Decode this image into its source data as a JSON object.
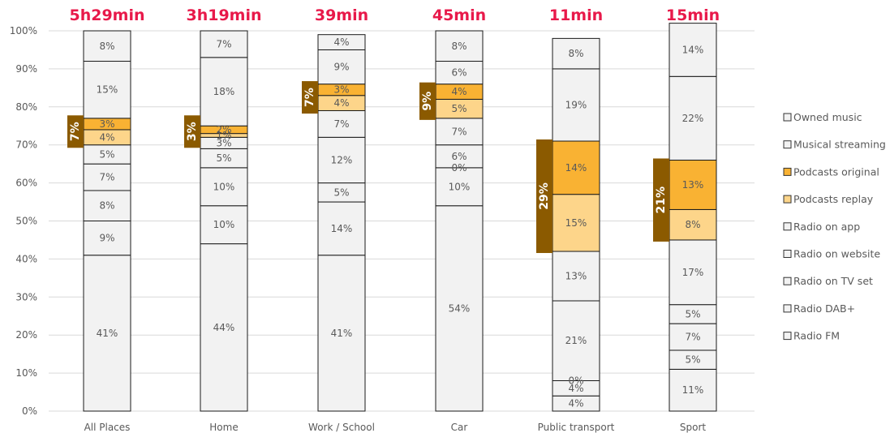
{
  "colors": {
    "segment_default": "#f2f2f2",
    "segment_stroke": "#1a1a1a",
    "podcasts_original": "#f9b233",
    "podcasts_replay": "#fdd58a",
    "bracket": "#8b5a00",
    "duration_text": "#e8194a",
    "gridline": "#d9d9d9"
  },
  "chart_data": {
    "type": "bar",
    "stacked": true,
    "categories": [
      "All Places",
      "Home",
      "Work / School",
      "Car",
      "Public transport",
      "Sport"
    ],
    "durations": [
      "5h29min",
      "3h19min",
      "39min",
      "45min",
      "11min",
      "15min"
    ],
    "ylim": [
      0,
      100
    ],
    "y_ticks": [
      "0%",
      "10%",
      "20%",
      "30%",
      "40%",
      "50%",
      "60%",
      "70%",
      "80%",
      "90%",
      "100%"
    ],
    "grid": true,
    "legend_position": "right",
    "series": [
      {
        "name": "Radio FM",
        "color": "#f2f2f2",
        "values": [
          41,
          44,
          41,
          54,
          4,
          11
        ],
        "labels": [
          "41%",
          "44%",
          "41%",
          "54%",
          "4%",
          "11%"
        ]
      },
      {
        "name": "Radio DAB+",
        "color": "#f2f2f2",
        "values": [
          9,
          10,
          14,
          10,
          4,
          5
        ],
        "labels": [
          "9%",
          "10%",
          "14%",
          "10%",
          "4%",
          "5%"
        ]
      },
      {
        "name": "Radio on TV set",
        "color": "#f2f2f2",
        "values": [
          8,
          10,
          5,
          0,
          0,
          7
        ],
        "labels": [
          "8%",
          "10%",
          "5%",
          "0%",
          "0%",
          "7%"
        ]
      },
      {
        "name": "Radio on website",
        "color": "#f2f2f2",
        "values": [
          7,
          5,
          12,
          6,
          21,
          5
        ],
        "labels": [
          "7%",
          "5%",
          "12%",
          "6%",
          "21%",
          "5%"
        ]
      },
      {
        "name": "Radio on app",
        "color": "#f2f2f2",
        "values": [
          5,
          3,
          7,
          7,
          13,
          17
        ],
        "labels": [
          "5%",
          "3%",
          "7%",
          "7%",
          "13%",
          "17%"
        ]
      },
      {
        "name": "Podcasts replay",
        "color": "#fdd58a",
        "values": [
          4,
          1,
          4,
          5,
          15,
          8
        ],
        "labels": [
          "4%",
          "1%",
          "4%",
          "5%",
          "15%",
          "8%"
        ]
      },
      {
        "name": "Podcasts original",
        "color": "#f9b233",
        "values": [
          3,
          2,
          3,
          4,
          14,
          13
        ],
        "labels": [
          "3%",
          "2%",
          "3%",
          "4%",
          "14%",
          "13%"
        ]
      },
      {
        "name": "Musical streaming",
        "color": "#f2f2f2",
        "values": [
          15,
          18,
          9,
          6,
          19,
          22
        ],
        "labels": [
          "15%",
          "18%",
          "9%",
          "6%",
          "19%",
          "22%"
        ]
      },
      {
        "name": "Owned music",
        "color": "#f2f2f2",
        "values": [
          8,
          7,
          4,
          8,
          8,
          14
        ],
        "labels": [
          "8%",
          "7%",
          "4%",
          "8%",
          "8%",
          "14%"
        ]
      }
    ],
    "podcast_totals": [
      "7%",
      "3%",
      "7%",
      "9%",
      "29%",
      "21%"
    ],
    "legend": [
      "Owned music",
      "Musical streaming",
      "Podcasts original",
      "Podcasts replay",
      "Radio on app",
      "Radio on website",
      "Radio on TV set",
      "Radio DAB+",
      "Radio FM"
    ]
  }
}
